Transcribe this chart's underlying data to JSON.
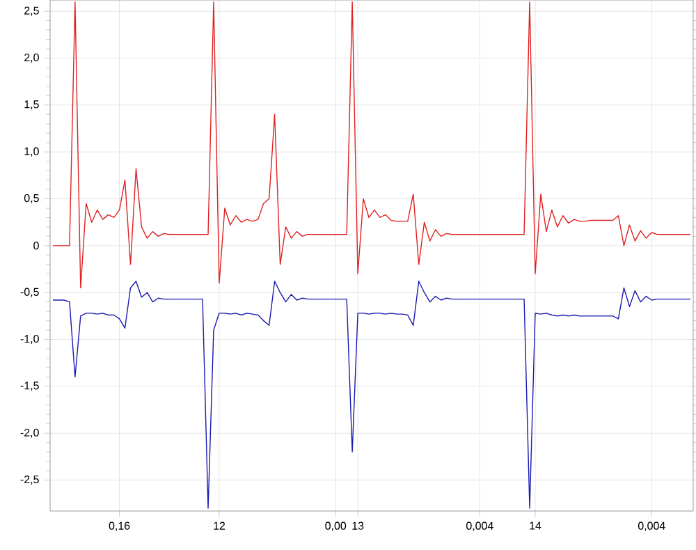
{
  "chart_data": {
    "type": "line",
    "categories": [
      null,
      null,
      null,
      null,
      null,
      null,
      null,
      null,
      null,
      null,
      null,
      null,
      "0,16",
      null,
      null,
      null,
      null,
      null,
      null,
      null,
      null,
      null,
      null,
      null,
      null,
      null,
      null,
      null,
      null,
      null,
      "12",
      null,
      null,
      null,
      null,
      null,
      null,
      null,
      null,
      null,
      null,
      null,
      null,
      null,
      null,
      null,
      null,
      null,
      null,
      null,
      null,
      "0,00",
      null,
      null,
      null,
      "13",
      null,
      null,
      null,
      null,
      null,
      null,
      null,
      null,
      null,
      null,
      null,
      null,
      null,
      null,
      null,
      null,
      null,
      null,
      null,
      null,
      null,
      "0,004",
      null,
      null,
      null,
      null,
      null,
      null,
      null,
      null,
      null,
      "14",
      null,
      null,
      null,
      null,
      null,
      null,
      null,
      null,
      null,
      null,
      null,
      null,
      null,
      null,
      null,
      null,
      null,
      null,
      null,
      null,
      "0,004",
      null,
      null,
      null,
      null,
      null,
      null,
      null
    ],
    "series": [
      {
        "color": "#e02020",
        "values": [
          0,
          0,
          0,
          0,
          2.6,
          -0.45,
          0.45,
          0.25,
          0.38,
          0.28,
          0.33,
          0.3,
          0.38,
          0.7,
          -0.2,
          0.82,
          0.2,
          0.08,
          0.15,
          0.1,
          0.13,
          0.12,
          0.12,
          0.12,
          0.12,
          0.12,
          0.12,
          0.12,
          0.12,
          2.6,
          -0.4,
          0.4,
          0.22,
          0.32,
          0.25,
          0.28,
          0.26,
          0.28,
          0.45,
          0.5,
          1.4,
          -0.2,
          0.2,
          0.08,
          0.15,
          0.1,
          0.12,
          0.12,
          0.12,
          0.12,
          0.12,
          0.12,
          0.12,
          0.12,
          2.6,
          -0.3,
          0.5,
          0.3,
          0.38,
          0.3,
          0.33,
          0.27,
          0.26,
          0.26,
          0.26,
          0.55,
          -0.2,
          0.25,
          0.05,
          0.17,
          0.1,
          0.13,
          0.12,
          0.12,
          0.12,
          0.12,
          0.12,
          0.12,
          0.12,
          0.12,
          0.12,
          0.12,
          0.12,
          0.12,
          0.12,
          0.12,
          2.6,
          -0.3,
          0.55,
          0.15,
          0.38,
          0.2,
          0.32,
          0.24,
          0.28,
          0.26,
          0.26,
          0.27,
          0.27,
          0.27,
          0.27,
          0.27,
          0.32,
          0.0,
          0.22,
          0.05,
          0.16,
          0.08,
          0.14,
          0.12,
          0.12,
          0.12,
          0.12,
          0.12,
          0.12,
          0.12
        ]
      },
      {
        "color": "#1a1ab0",
        "values": [
          -0.58,
          -0.58,
          -0.58,
          -0.6,
          -1.4,
          -0.75,
          -0.72,
          -0.72,
          -0.73,
          -0.72,
          -0.74,
          -0.74,
          -0.78,
          -0.88,
          -0.45,
          -0.38,
          -0.55,
          -0.5,
          -0.6,
          -0.56,
          -0.57,
          -0.57,
          -0.57,
          -0.57,
          -0.57,
          -0.57,
          -0.57,
          -0.57,
          -2.8,
          -0.9,
          -0.72,
          -0.72,
          -0.73,
          -0.72,
          -0.74,
          -0.72,
          -0.73,
          -0.74,
          -0.8,
          -0.85,
          -0.38,
          -0.5,
          -0.6,
          -0.52,
          -0.58,
          -0.56,
          -0.57,
          -0.57,
          -0.57,
          -0.57,
          -0.57,
          -0.57,
          -0.57,
          -0.57,
          -2.2,
          -0.72,
          -0.72,
          -0.73,
          -0.72,
          -0.72,
          -0.73,
          -0.72,
          -0.73,
          -0.73,
          -0.74,
          -0.85,
          -0.38,
          -0.5,
          -0.6,
          -0.54,
          -0.58,
          -0.56,
          -0.57,
          -0.57,
          -0.57,
          -0.57,
          -0.57,
          -0.57,
          -0.57,
          -0.57,
          -0.57,
          -0.57,
          -0.57,
          -0.57,
          -0.57,
          -0.57,
          -2.8,
          -0.72,
          -0.73,
          -0.72,
          -0.74,
          -0.75,
          -0.74,
          -0.75,
          -0.74,
          -0.75,
          -0.75,
          -0.75,
          -0.75,
          -0.75,
          -0.75,
          -0.75,
          -0.78,
          -0.45,
          -0.65,
          -0.48,
          -0.6,
          -0.54,
          -0.58,
          -0.57,
          -0.57,
          -0.57,
          -0.57,
          -0.57,
          -0.57,
          -0.57
        ]
      }
    ],
    "ylim": [
      -2.83,
      2.62
    ],
    "yticks": [
      {
        "value": -2.5,
        "label": "-2,5"
      },
      {
        "value": -2.0,
        "label": "-2,0"
      },
      {
        "value": -1.5,
        "label": "-1,5"
      },
      {
        "value": -1.0,
        "label": "-1,0"
      },
      {
        "value": -0.5,
        "label": "-0,5"
      },
      0,
      {
        "value": 0.5,
        "label": "0,5"
      },
      {
        "value": 1.0,
        "label": "1,0"
      },
      {
        "value": 1.5,
        "label": "1,5"
      },
      {
        "value": 2.0,
        "label": "2,0"
      },
      {
        "value": 2.5,
        "label": "2,5"
      }
    ],
    "grid": true,
    "marker": "none",
    "line_style": "solid"
  }
}
